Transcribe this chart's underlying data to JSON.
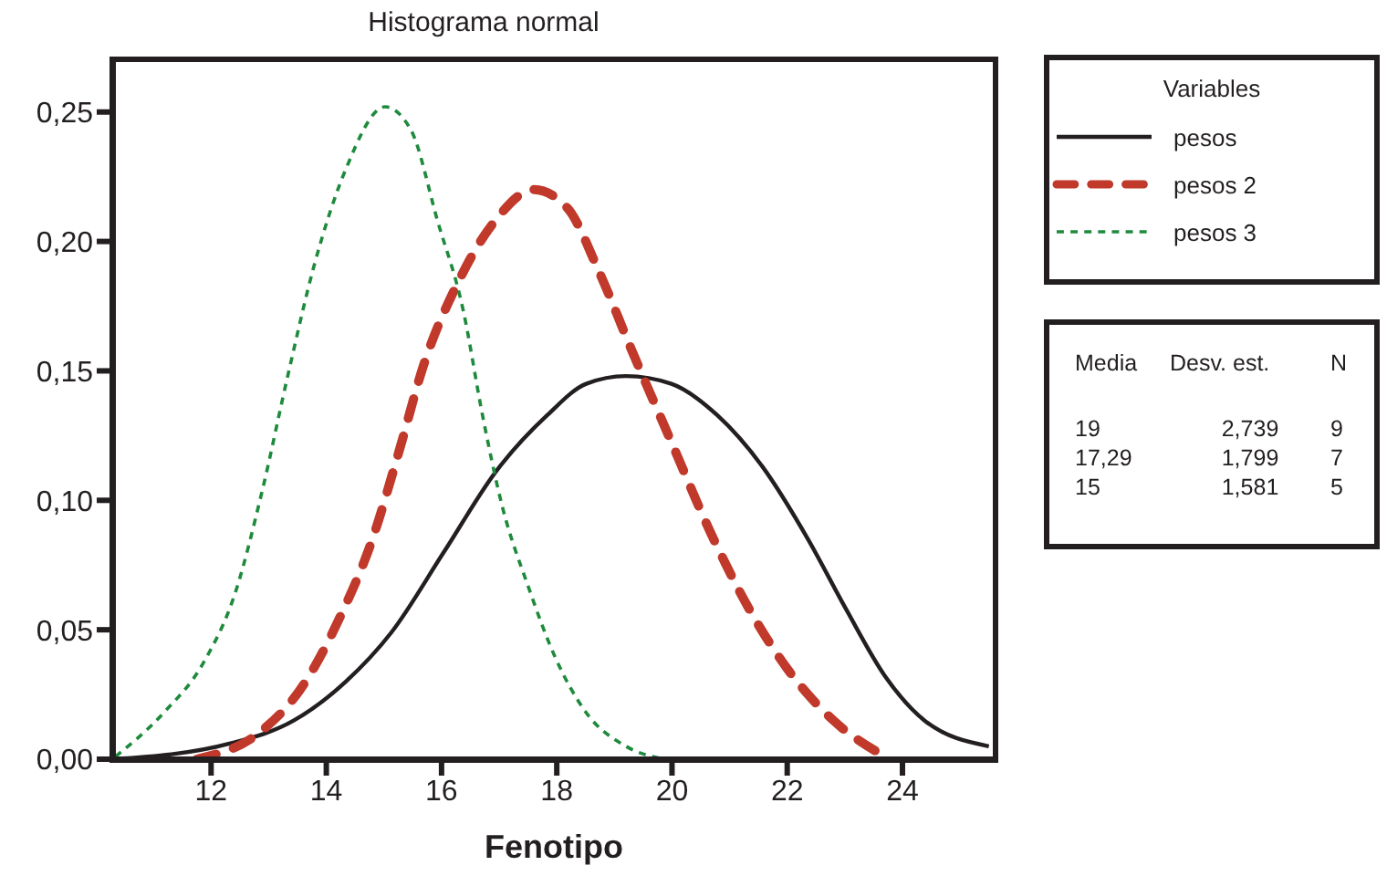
{
  "chart_data": {
    "type": "line",
    "title": "Histograma normal",
    "xlabel": "Fenotipo",
    "legend_title": "Variables",
    "legend": "right",
    "marker": "none",
    "xlim": [
      10.3,
      25.6
    ],
    "xticks": [
      12,
      14,
      16,
      18,
      20,
      22,
      24
    ],
    "ylim": [
      0,
      0.27
    ],
    "yticks": [
      {
        "value": 0,
        "label": "0,00"
      },
      {
        "value": 0.05,
        "label": "0,05"
      },
      {
        "value": 0.1,
        "label": "0,10"
      },
      {
        "value": 0.15,
        "label": "0,15"
      },
      {
        "value": 0.2,
        "label": "0,20"
      },
      {
        "value": 0.25,
        "label": "0,25"
      }
    ],
    "series": [
      {
        "name": "pesos",
        "color": "#231f20",
        "line_style": "solid",
        "x": [
          10.3,
          12.32,
          13.44,
          14.34,
          15.13,
          16.04,
          16.94,
          17.84,
          18.51,
          19.2,
          19.99,
          20.78,
          21.57,
          22.36,
          23.02,
          23.7,
          24.38,
          25.5
        ],
        "values": [
          0.0,
          0.006,
          0.015,
          0.03,
          0.049,
          0.08,
          0.111,
          0.133,
          0.145,
          0.148,
          0.145,
          0.133,
          0.113,
          0.085,
          0.058,
          0.032,
          0.015,
          0.005
        ]
      },
      {
        "name": "pesos 2",
        "color": "#c0392b",
        "line_style": "dashed",
        "x": [
          11.75,
          12.88,
          13.55,
          14.24,
          14.8,
          15.25,
          15.7,
          16.26,
          16.93,
          17.6,
          18.18,
          18.74,
          19.3,
          19.98,
          20.66,
          21.34,
          22.0,
          22.8,
          23.7
        ],
        "values": [
          0.0,
          0.011,
          0.027,
          0.055,
          0.085,
          0.118,
          0.153,
          0.183,
          0.208,
          0.22,
          0.213,
          0.188,
          0.158,
          0.123,
          0.088,
          0.058,
          0.035,
          0.015,
          0.001
        ]
      },
      {
        "name": "pesos 3",
        "color": "#1e8a3c",
        "line_style": "dashed",
        "x": [
          10.34,
          11.18,
          11.86,
          12.43,
          12.88,
          13.33,
          13.78,
          14.34,
          15.02,
          15.47,
          15.93,
          16.38,
          16.71,
          17.05,
          17.5,
          17.96,
          18.51,
          19.2,
          19.86
        ],
        "values": [
          0.001,
          0.018,
          0.037,
          0.065,
          0.103,
          0.148,
          0.19,
          0.228,
          0.252,
          0.243,
          0.208,
          0.173,
          0.133,
          0.098,
          0.067,
          0.04,
          0.018,
          0.005,
          0.0
        ]
      }
    ],
    "annotations": [
      "Media",
      "Desv. est.",
      "N",
      "19",
      "2,739",
      "9",
      "17,29",
      "1,799",
      "7",
      "15",
      "1,581",
      "5"
    ]
  }
}
